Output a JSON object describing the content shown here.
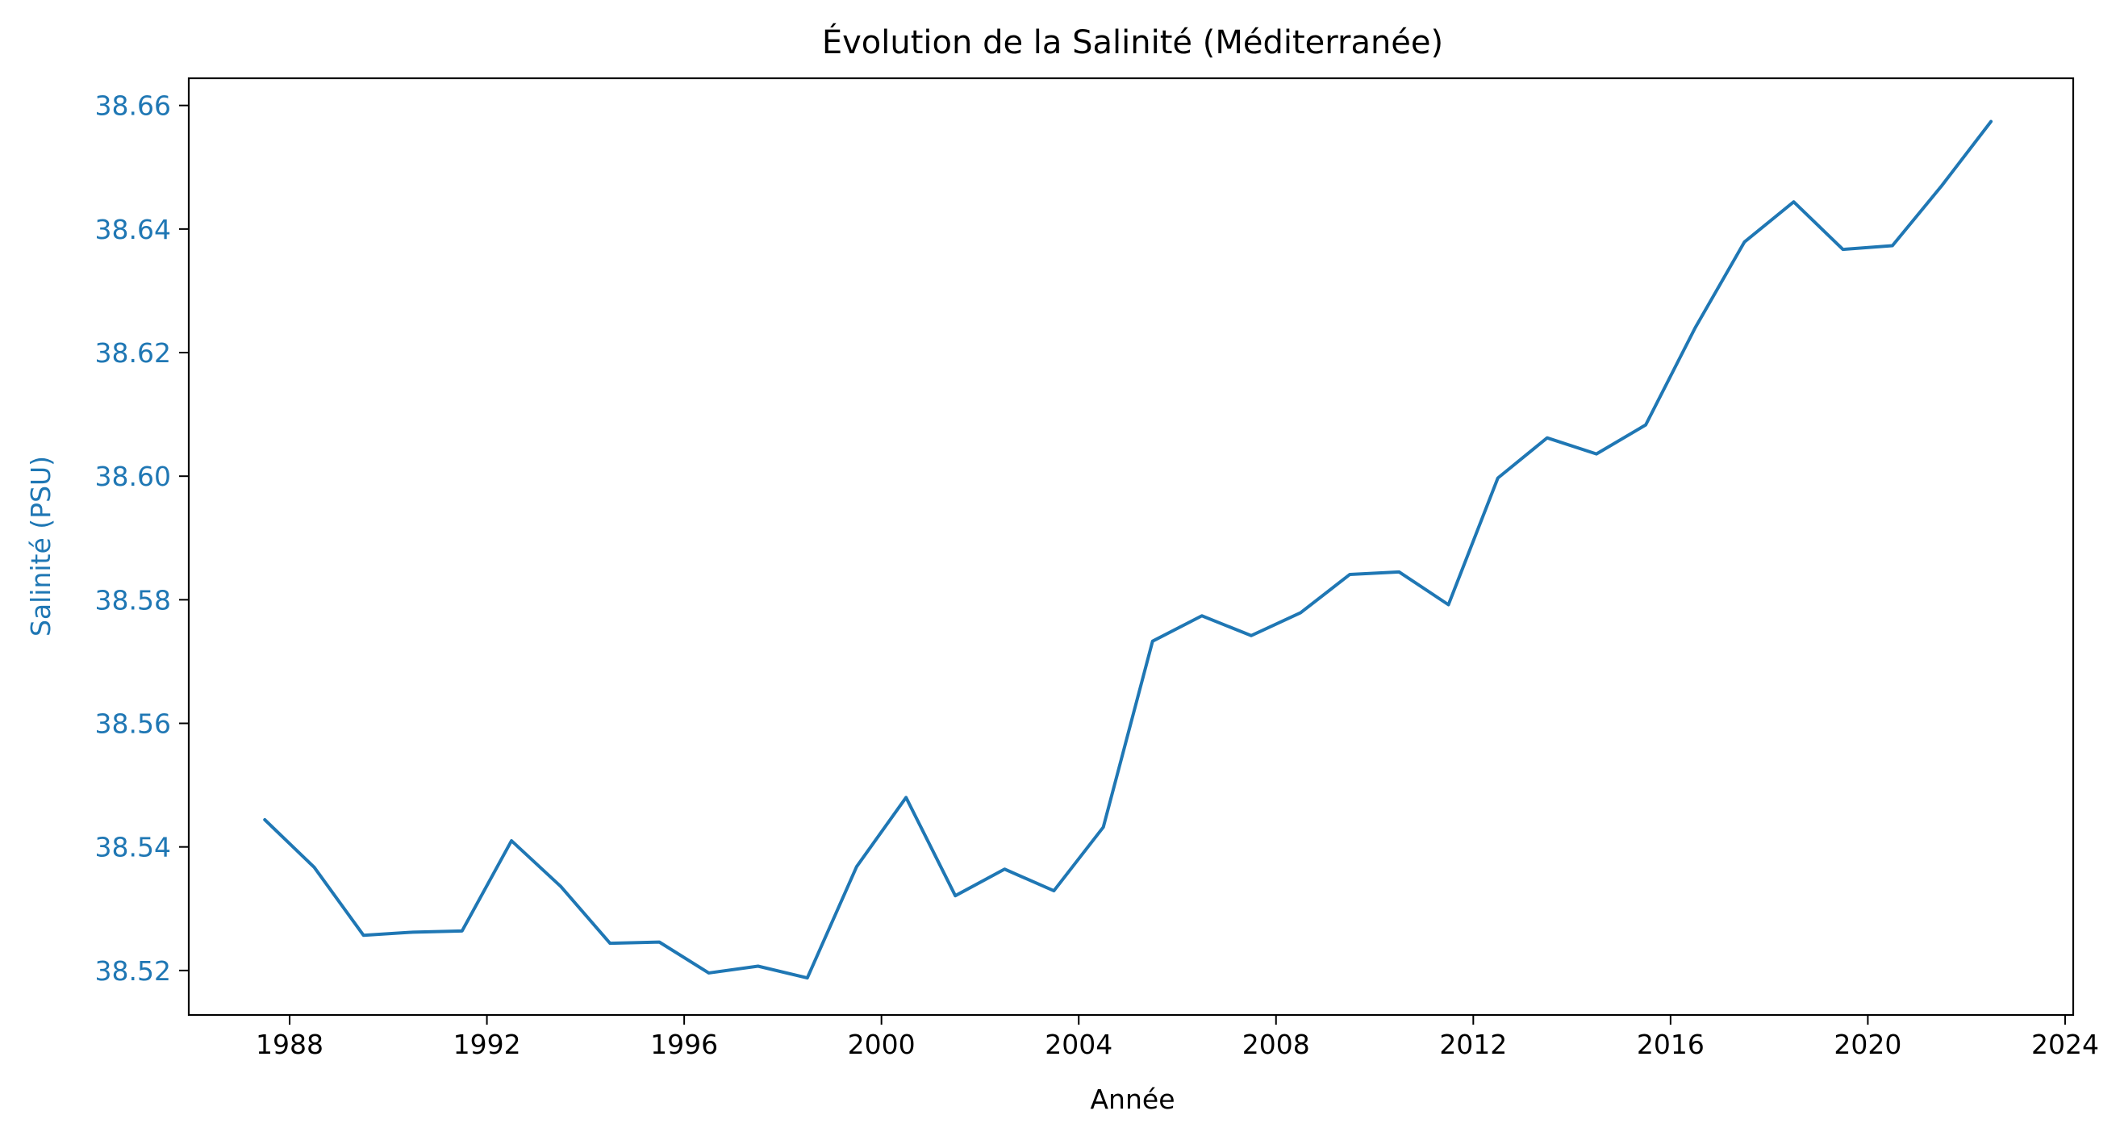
{
  "chart_data": {
    "type": "line",
    "title": "Évolution de la Salinité (Méditerranée)",
    "xlabel": "Année",
    "ylabel": "Salinité (PSU)",
    "xlim": [
      "1985-12-15",
      "2024-03-01"
    ],
    "ylim": [
      38.5128,
      38.6644
    ],
    "x_ticks": [
      {
        "date": "1988-01-01",
        "label": "1988"
      },
      {
        "date": "1992-01-01",
        "label": "1992"
      },
      {
        "date": "1996-01-01",
        "label": "1996"
      },
      {
        "date": "2000-01-01",
        "label": "2000"
      },
      {
        "date": "2004-01-01",
        "label": "2004"
      },
      {
        "date": "2008-01-01",
        "label": "2008"
      },
      {
        "date": "2012-01-01",
        "label": "2012"
      },
      {
        "date": "2016-01-01",
        "label": "2016"
      },
      {
        "date": "2020-01-01",
        "label": "2020"
      },
      {
        "date": "2024-01-01",
        "label": "2024"
      }
    ],
    "y_ticks": [
      {
        "value": 38.52,
        "label": "38.52"
      },
      {
        "value": 38.54,
        "label": "38.54"
      },
      {
        "value": 38.56,
        "label": "38.56"
      },
      {
        "value": 38.58,
        "label": "38.58"
      },
      {
        "value": 38.6,
        "label": "38.60"
      },
      {
        "value": 38.62,
        "label": "38.62"
      },
      {
        "value": 38.64,
        "label": "38.64"
      },
      {
        "value": 38.66,
        "label": "38.66"
      }
    ],
    "grid": false,
    "series": [
      {
        "color": "#1f77b4",
        "points": [
          {
            "x": "1987-07-01",
            "y": 38.5444
          },
          {
            "x": "1988-07-01",
            "y": 38.5367
          },
          {
            "x": "1989-07-01",
            "y": 38.5257
          },
          {
            "x": "1990-07-01",
            "y": 38.5262
          },
          {
            "x": "1991-07-01",
            "y": 38.5264
          },
          {
            "x": "1992-07-01",
            "y": 38.541
          },
          {
            "x": "1993-07-01",
            "y": 38.5336
          },
          {
            "x": "1994-07-01",
            "y": 38.5244
          },
          {
            "x": "1995-07-01",
            "y": 38.5246
          },
          {
            "x": "1996-07-01",
            "y": 38.5196
          },
          {
            "x": "1997-07-01",
            "y": 38.5207
          },
          {
            "x": "1998-07-01",
            "y": 38.5188
          },
          {
            "x": "1999-07-01",
            "y": 38.5368
          },
          {
            "x": "2000-07-01",
            "y": 38.548
          },
          {
            "x": "2001-07-01",
            "y": 38.5321
          },
          {
            "x": "2002-07-01",
            "y": 38.5364
          },
          {
            "x": "2003-07-01",
            "y": 38.5329
          },
          {
            "x": "2004-07-01",
            "y": 38.5432
          },
          {
            "x": "2005-07-01",
            "y": 38.5733
          },
          {
            "x": "2006-07-01",
            "y": 38.5774
          },
          {
            "x": "2007-07-01",
            "y": 38.5742
          },
          {
            "x": "2008-07-01",
            "y": 38.5779
          },
          {
            "x": "2009-07-01",
            "y": 38.5841
          },
          {
            "x": "2010-07-01",
            "y": 38.5845
          },
          {
            "x": "2011-07-01",
            "y": 38.5792
          },
          {
            "x": "2012-07-01",
            "y": 38.5997
          },
          {
            "x": "2013-07-01",
            "y": 38.6062
          },
          {
            "x": "2014-07-01",
            "y": 38.6036
          },
          {
            "x": "2015-07-01",
            "y": 38.6083
          },
          {
            "x": "2016-07-01",
            "y": 38.624
          },
          {
            "x": "2017-07-01",
            "y": 38.6379
          },
          {
            "x": "2018-07-01",
            "y": 38.6444
          },
          {
            "x": "2019-07-01",
            "y": 38.6367
          },
          {
            "x": "2020-07-01",
            "y": 38.6373
          },
          {
            "x": "2021-07-01",
            "y": 38.647
          },
          {
            "x": "2022-07-01",
            "y": 38.6574
          }
        ]
      }
    ],
    "colors": {
      "line": "#1f77b4",
      "ylabel": "#1f77b4",
      "ytick_labels": "#1f77b4",
      "axes": "#000000",
      "text": "#000000"
    }
  }
}
